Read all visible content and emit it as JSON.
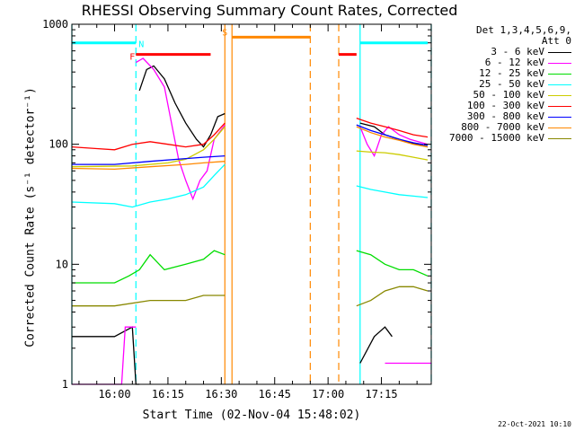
{
  "chart_data": {
    "type": "line",
    "title": "RHESSI Observing Summary Count Rates, Corrected",
    "xlabel": "Start Time (02-Nov-04 15:48:02)",
    "ylabel": "Corrected Count Rate (s⁻¹ detector⁻¹)",
    "yscale": "log",
    "ylim": [
      1,
      1000
    ],
    "y_ticks": [
      {
        "value": 1,
        "label": "1"
      },
      {
        "value": 10,
        "label": "10"
      },
      {
        "value": 100,
        "label": "100"
      },
      {
        "value": 1000,
        "label": "1000"
      }
    ],
    "xlim": [
      "15:48",
      "17:29"
    ],
    "x_ticks": [
      "16:00",
      "16:15",
      "16:30",
      "16:45",
      "17:00",
      "17:15"
    ],
    "legend_header": [
      "Det 1,3,4,5,6,9,",
      "Att 0"
    ],
    "legend_position": "right",
    "series": [
      {
        "name": "3 - 6 keV",
        "color": "#000000",
        "segments": [
          [
            [
              "15:48",
              2.5
            ],
            [
              "16:00",
              2.5
            ],
            [
              "16:05",
              3
            ],
            [
              "16:06",
              1
            ],
            [
              "16:07",
              1
            ]
          ],
          [
            [
              "16:07",
              280
            ],
            [
              "16:09",
              420
            ],
            [
              "16:11",
              450
            ],
            [
              "16:14",
              350
            ],
            [
              "16:17",
              220
            ],
            [
              "16:20",
              150
            ],
            [
              "16:23",
              110
            ],
            [
              "16:25",
              95
            ],
            [
              "16:27",
              120
            ],
            [
              "16:29",
              170
            ],
            [
              "16:31",
              180
            ]
          ],
          [
            [
              "17:09",
              150
            ],
            [
              "17:13",
              140
            ],
            [
              "17:16",
              120
            ],
            [
              "17:18",
              115
            ],
            [
              "17:20",
              110
            ],
            [
              "17:22",
              105
            ],
            [
              "17:25",
              100
            ],
            [
              "17:28",
              95
            ]
          ],
          [
            [
              "17:09",
              1.5
            ],
            [
              "17:13",
              2.5
            ],
            [
              "17:16",
              3
            ],
            [
              "17:18",
              2.5
            ]
          ]
        ]
      },
      {
        "name": "6 - 12 keV",
        "color": "#ff00ff",
        "segments": [
          [
            [
              "15:48",
              1
            ],
            [
              "16:02",
              1
            ],
            [
              "16:03",
              3
            ],
            [
              "16:06",
              3
            ]
          ],
          [
            [
              "16:06",
              480
            ],
            [
              "16:08",
              520
            ],
            [
              "16:11",
              420
            ],
            [
              "16:14",
              300
            ],
            [
              "16:16",
              150
            ],
            [
              "16:18",
              75
            ],
            [
              "16:20",
              50
            ],
            [
              "16:22",
              35
            ],
            [
              "16:24",
              50
            ],
            [
              "16:26",
              60
            ],
            [
              "16:28",
              110
            ],
            [
              "16:31",
              145
            ]
          ],
          [
            [
              "17:09",
              140
            ],
            [
              "17:11",
              100
            ],
            [
              "17:13",
              80
            ],
            [
              "17:15",
              120
            ],
            [
              "17:17",
              140
            ],
            [
              "17:20",
              120
            ],
            [
              "17:23",
              110
            ],
            [
              "17:28",
              100
            ]
          ],
          [
            [
              "17:16",
              1.5
            ],
            [
              "17:29",
              1.5
            ]
          ]
        ]
      },
      {
        "name": "12 - 25 keV",
        "color": "#00dd00",
        "segments": [
          [
            [
              "15:48",
              7
            ],
            [
              "16:00",
              7
            ],
            [
              "16:04",
              8
            ],
            [
              "16:07",
              9
            ],
            [
              "16:10",
              12
            ],
            [
              "16:14",
              9
            ],
            [
              "16:20",
              10
            ],
            [
              "16:25",
              11
            ],
            [
              "16:28",
              13
            ],
            [
              "16:31",
              12
            ]
          ],
          [
            [
              "17:08",
              13
            ],
            [
              "17:12",
              12
            ],
            [
              "17:16",
              10
            ],
            [
              "17:20",
              9
            ],
            [
              "17:24",
              9
            ],
            [
              "17:28",
              8
            ]
          ]
        ]
      },
      {
        "name": "25 - 50 keV",
        "color": "#00ffff",
        "segments": [
          [
            [
              "15:48",
              33
            ],
            [
              "16:00",
              32
            ],
            [
              "16:05",
              30
            ],
            [
              "16:10",
              33
            ],
            [
              "16:15",
              35
            ],
            [
              "16:20",
              38
            ],
            [
              "16:25",
              44
            ],
            [
              "16:28",
              55
            ],
            [
              "16:31",
              68
            ]
          ],
          [
            [
              "17:08",
              45
            ],
            [
              "17:12",
              42
            ],
            [
              "17:16",
              40
            ],
            [
              "17:20",
              38
            ],
            [
              "17:24",
              37
            ],
            [
              "17:28",
              36
            ]
          ]
        ]
      },
      {
        "name": "50 - 100 keV",
        "color": "#cccc00",
        "segments": [
          [
            [
              "15:48",
              65
            ],
            [
              "16:05",
              66
            ],
            [
              "16:15",
              70
            ],
            [
              "16:20",
              75
            ],
            [
              "16:25",
              90
            ],
            [
              "16:28",
              110
            ],
            [
              "16:31",
              140
            ]
          ],
          [
            [
              "17:08",
              88
            ],
            [
              "17:12",
              86
            ],
            [
              "17:16",
              85
            ],
            [
              "17:20",
              82
            ],
            [
              "17:24",
              78
            ],
            [
              "17:28",
              74
            ]
          ]
        ]
      },
      {
        "name": "100 - 300 keV",
        "color": "#ff0000",
        "segments": [
          [
            [
              "15:48",
              95
            ],
            [
              "15:55",
              92
            ],
            [
              "16:00",
              90
            ],
            [
              "16:05",
              100
            ],
            [
              "16:10",
              105
            ],
            [
              "16:15",
              100
            ],
            [
              "16:20",
              95
            ],
            [
              "16:25",
              100
            ],
            [
              "16:28",
              120
            ],
            [
              "16:31",
              150
            ]
          ],
          [
            [
              "17:08",
              165
            ],
            [
              "17:12",
              150
            ],
            [
              "17:16",
              140
            ],
            [
              "17:20",
              130
            ],
            [
              "17:24",
              120
            ],
            [
              "17:28",
              115
            ]
          ]
        ]
      },
      {
        "name": "300 - 800 keV",
        "color": "#0000ff",
        "segments": [
          [
            [
              "15:48",
              68
            ],
            [
              "16:00",
              68
            ],
            [
              "16:10",
              72
            ],
            [
              "16:20",
              76
            ],
            [
              "16:25",
              78
            ],
            [
              "16:31",
              80
            ]
          ],
          [
            [
              "17:08",
              145
            ],
            [
              "17:12",
              130
            ],
            [
              "17:16",
              120
            ],
            [
              "17:20",
              110
            ],
            [
              "17:24",
              103
            ],
            [
              "17:28",
              98
            ]
          ]
        ]
      },
      {
        "name": "800 - 7000 keV",
        "color": "#ff8800",
        "segments": [
          [
            [
              "15:48",
              63
            ],
            [
              "16:00",
              62
            ],
            [
              "16:10",
              65
            ],
            [
              "16:20",
              68
            ],
            [
              "16:25",
              70
            ],
            [
              "16:31",
              72
            ]
          ],
          [
            [
              "17:08",
              140
            ],
            [
              "17:12",
              125
            ],
            [
              "17:16",
              115
            ],
            [
              "17:20",
              108
            ],
            [
              "17:24",
              100
            ],
            [
              "17:28",
              95
            ]
          ]
        ]
      },
      {
        "name": "7000 - 15000 keV",
        "color": "#888800",
        "segments": [
          [
            [
              "15:48",
              4.5
            ],
            [
              "16:00",
              4.5
            ],
            [
              "16:10",
              5
            ],
            [
              "16:20",
              5
            ],
            [
              "16:25",
              5.5
            ],
            [
              "16:31",
              5.5
            ]
          ],
          [
            [
              "17:08",
              4.5
            ],
            [
              "17:12",
              5
            ],
            [
              "17:16",
              6
            ],
            [
              "17:20",
              6.5
            ],
            [
              "17:24",
              6.5
            ],
            [
              "17:28",
              6
            ]
          ]
        ]
      }
    ],
    "annotations": [
      {
        "label": "N",
        "color": "#00ffff",
        "start": "15:48",
        "end": "16:06",
        "level": 700
      },
      {
        "label": "",
        "color": "#00ffff",
        "start": "17:09",
        "end": "17:28",
        "level": 700
      },
      {
        "label": "F",
        "color": "#ff0000",
        "start": "16:06",
        "end": "16:27",
        "level": 560
      },
      {
        "label": "",
        "color": "#ff0000",
        "start": "17:03",
        "end": "17:08",
        "level": 560
      },
      {
        "label": "S",
        "color": "#ff8800",
        "start": "16:33",
        "end": "16:55",
        "level": 780
      }
    ],
    "markers": [
      {
        "time": "15:48",
        "color": "#00ffff",
        "style": "solid"
      },
      {
        "time": "16:06",
        "color": "#00ffff",
        "style": "dashed"
      },
      {
        "time": "16:31",
        "color": "#ff8800",
        "style": "solid"
      },
      {
        "time": "16:33",
        "color": "#ff8800",
        "style": "solid"
      },
      {
        "time": "16:55",
        "color": "#ff8800",
        "style": "dashed"
      },
      {
        "time": "17:03",
        "color": "#ff8800",
        "style": "dashed"
      },
      {
        "time": "17:09",
        "color": "#00ffff",
        "style": "solid"
      },
      {
        "time": "17:29",
        "color": "#00ffff",
        "style": "dashed"
      }
    ],
    "footer": "22-Oct-2021 10:10"
  }
}
